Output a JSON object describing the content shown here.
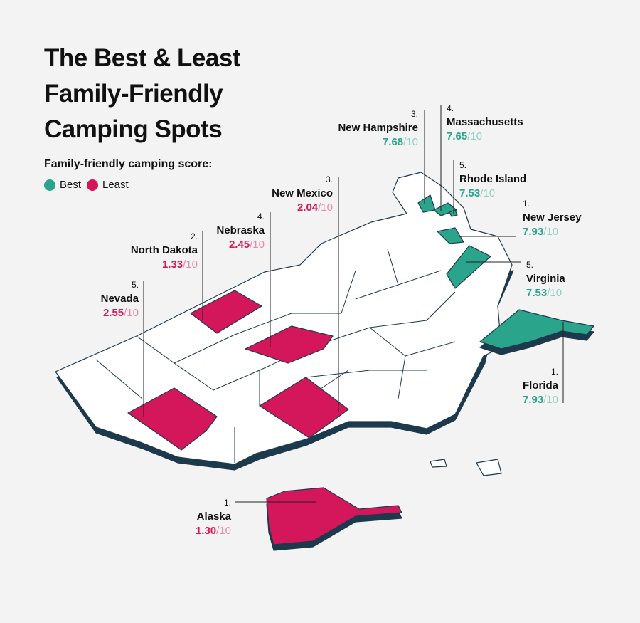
{
  "title": [
    "The Best & Least",
    "Family-Friendly",
    "Camping Spots"
  ],
  "legend": {
    "label": "Family-friendly camping score:",
    "items": [
      {
        "name": "Best",
        "color": "#2aa58c"
      },
      {
        "name": "Least",
        "color": "#d4175a"
      }
    ]
  },
  "callouts": [
    {
      "rank": "3.",
      "name": "New Hampshire",
      "score": "7.68",
      "out_of": "/10",
      "group": "best"
    },
    {
      "rank": "4.",
      "name": "Massachusetts",
      "score": "7.65",
      "out_of": "/10",
      "group": "best"
    },
    {
      "rank": "5.",
      "name": "Rhode Island",
      "score": "7.53",
      "out_of": "/10",
      "group": "best"
    },
    {
      "rank": "1.",
      "name": "New Jersey",
      "score": "7.93",
      "out_of": "/10",
      "group": "best"
    },
    {
      "rank": "5.",
      "name": "Virginia",
      "score": "7.53",
      "out_of": "/10",
      "group": "best"
    },
    {
      "rank": "1.",
      "name": "Florida",
      "score": "7.93",
      "out_of": "/10",
      "group": "best"
    },
    {
      "rank": "3.",
      "name": "New Mexico",
      "score": "2.04",
      "out_of": "/10",
      "group": "least"
    },
    {
      "rank": "4.",
      "name": "Nebraska",
      "score": "2.45",
      "out_of": "/10",
      "group": "least"
    },
    {
      "rank": "2.",
      "name": "North Dakota",
      "score": "1.33",
      "out_of": "/10",
      "group": "least"
    },
    {
      "rank": "5.",
      "name": "Nevada",
      "score": "2.55",
      "out_of": "/10",
      "group": "least"
    },
    {
      "rank": "1.",
      "name": "Alaska",
      "score": "1.30",
      "out_of": "/10",
      "group": "least"
    }
  ]
}
